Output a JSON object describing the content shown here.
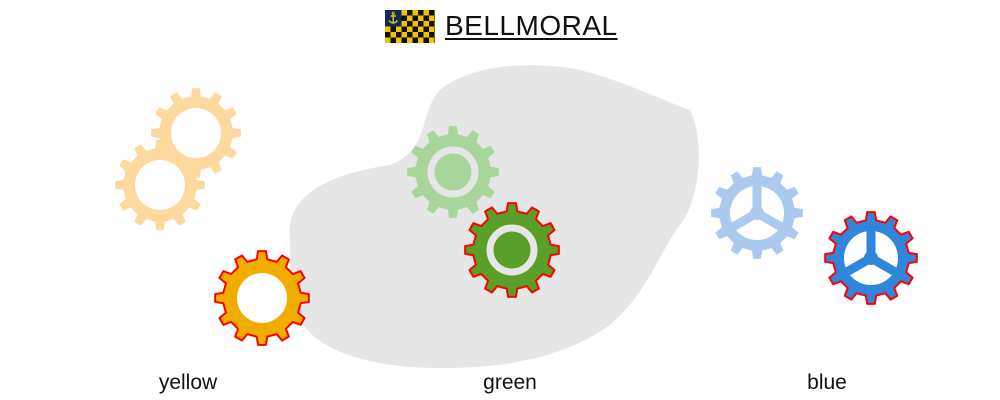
{
  "header": {
    "title": "BELLMORAL",
    "flag": {
      "name": "anchor-checkered-flag",
      "colors": {
        "field": "#0d2a5c",
        "anchor": "#f2c200",
        "check_dark": "#111111",
        "check_light": "#f2c200"
      }
    }
  },
  "groups": [
    {
      "label": "yellow",
      "colors": {
        "light": "#fdd9a0",
        "dark": "#f0ad00",
        "outline": "#ff0000",
        "inner": "#ffffff"
      }
    },
    {
      "label": "green",
      "colors": {
        "light": "#a8d69a",
        "dark": "#58a02a",
        "outline": "#ff0000",
        "inner": "#e6e6e6"
      }
    },
    {
      "label": "blue",
      "colors": {
        "light": "#aacbef",
        "dark": "#2f86db",
        "outline": "#ff0000",
        "inner": "#ffffff"
      }
    }
  ],
  "backdrop_color": "#e6e6e6"
}
